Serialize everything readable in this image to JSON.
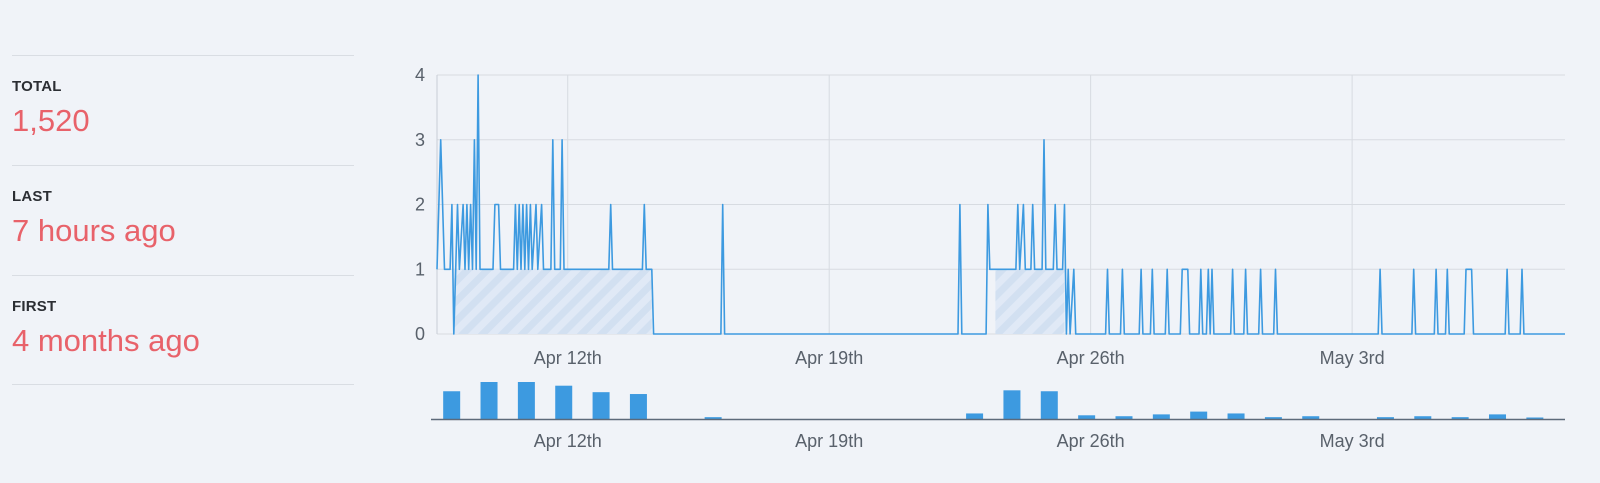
{
  "stats": [
    {
      "label": "TOTAL",
      "value": "1,520"
    },
    {
      "label": "LAST",
      "value": "7 hours ago"
    },
    {
      "label": "FIRST",
      "value": "4 months ago"
    }
  ],
  "colors": {
    "line": "#3d9ae0",
    "bar": "#3d9ae0",
    "value_text": "#e8626a",
    "grid": "#d7dbe1",
    "hatch": "#c3d8f0"
  },
  "chart_data": [
    {
      "type": "line",
      "title": "",
      "xlabel": "",
      "ylabel": "",
      "x_domain": [
        "Apr 9",
        "May 9"
      ],
      "ylim": [
        0,
        4
      ],
      "yticks": [
        "0",
        "1",
        "2",
        "3",
        "4"
      ],
      "xticks": [
        {
          "label": "Apr 12th",
          "day": 3.5
        },
        {
          "label": "Apr 19th",
          "day": 10.5
        },
        {
          "label": "Apr 26th",
          "day": 17.5
        },
        {
          "label": "May 3rd",
          "day": 24.5
        }
      ],
      "grid": true,
      "baseline_ranges": [
        [
          0.45,
          5.75
        ],
        [
          14.95,
          16.8
        ]
      ],
      "baseline_value": 1,
      "points": [
        [
          0.0,
          1
        ],
        [
          0.1,
          3
        ],
        [
          0.2,
          1
        ],
        [
          0.35,
          1
        ],
        [
          0.4,
          2
        ],
        [
          0.45,
          0
        ],
        [
          0.5,
          1
        ],
        [
          0.55,
          2
        ],
        [
          0.6,
          1
        ],
        [
          0.7,
          2
        ],
        [
          0.75,
          1
        ],
        [
          0.8,
          2
        ],
        [
          0.85,
          1
        ],
        [
          0.9,
          2
        ],
        [
          0.95,
          1
        ],
        [
          1.0,
          3
        ],
        [
          1.05,
          1
        ],
        [
          1.1,
          4
        ],
        [
          1.15,
          1
        ],
        [
          1.5,
          1
        ],
        [
          1.55,
          2
        ],
        [
          1.65,
          2
        ],
        [
          1.7,
          1
        ],
        [
          2.05,
          1
        ],
        [
          2.1,
          2
        ],
        [
          2.15,
          1
        ],
        [
          2.2,
          2
        ],
        [
          2.25,
          1
        ],
        [
          2.3,
          2
        ],
        [
          2.35,
          1
        ],
        [
          2.4,
          2
        ],
        [
          2.45,
          1
        ],
        [
          2.5,
          2
        ],
        [
          2.55,
          1
        ],
        [
          2.65,
          2
        ],
        [
          2.7,
          1
        ],
        [
          2.8,
          2
        ],
        [
          2.85,
          1
        ],
        [
          3.05,
          1
        ],
        [
          3.1,
          3
        ],
        [
          3.15,
          1
        ],
        [
          3.3,
          1
        ],
        [
          3.35,
          3
        ],
        [
          3.4,
          1
        ],
        [
          4.6,
          1
        ],
        [
          4.65,
          2
        ],
        [
          4.7,
          1
        ],
        [
          5.5,
          1
        ],
        [
          5.55,
          2
        ],
        [
          5.6,
          1
        ],
        [
          5.75,
          1
        ],
        [
          5.8,
          0
        ],
        [
          7.6,
          0
        ],
        [
          7.65,
          2
        ],
        [
          7.7,
          0
        ],
        [
          13.95,
          0
        ],
        [
          14.0,
          2
        ],
        [
          14.05,
          0
        ],
        [
          14.7,
          0
        ],
        [
          14.75,
          2
        ],
        [
          14.8,
          1
        ],
        [
          15.5,
          1
        ],
        [
          15.55,
          2
        ],
        [
          15.6,
          1
        ],
        [
          15.7,
          2
        ],
        [
          15.75,
          1
        ],
        [
          15.9,
          1
        ],
        [
          15.95,
          2
        ],
        [
          16.0,
          1
        ],
        [
          16.2,
          1
        ],
        [
          16.25,
          3
        ],
        [
          16.3,
          1
        ],
        [
          16.5,
          1
        ],
        [
          16.55,
          2
        ],
        [
          16.6,
          1
        ],
        [
          16.75,
          1
        ],
        [
          16.8,
          2
        ],
        [
          16.85,
          0
        ],
        [
          16.9,
          1
        ],
        [
          16.95,
          0
        ],
        [
          17.05,
          1
        ],
        [
          17.1,
          0
        ],
        [
          17.9,
          0
        ],
        [
          17.95,
          1
        ],
        [
          18.0,
          0
        ],
        [
          18.3,
          0
        ],
        [
          18.35,
          1
        ],
        [
          18.4,
          0
        ],
        [
          18.8,
          0
        ],
        [
          18.85,
          1
        ],
        [
          18.9,
          0
        ],
        [
          19.1,
          0
        ],
        [
          19.15,
          1
        ],
        [
          19.2,
          0
        ],
        [
          19.5,
          0
        ],
        [
          19.55,
          1
        ],
        [
          19.6,
          0
        ],
        [
          19.9,
          0
        ],
        [
          19.95,
          1
        ],
        [
          20.1,
          1
        ],
        [
          20.15,
          0
        ],
        [
          20.4,
          0
        ],
        [
          20.45,
          1
        ],
        [
          20.5,
          0
        ],
        [
          20.6,
          0
        ],
        [
          20.65,
          1
        ],
        [
          20.7,
          0
        ],
        [
          20.75,
          1
        ],
        [
          20.8,
          0
        ],
        [
          21.25,
          0
        ],
        [
          21.3,
          1
        ],
        [
          21.35,
          0
        ],
        [
          21.6,
          0
        ],
        [
          21.65,
          1
        ],
        [
          21.7,
          0
        ],
        [
          22.0,
          0
        ],
        [
          22.05,
          1
        ],
        [
          22.1,
          0
        ],
        [
          22.4,
          0
        ],
        [
          22.45,
          1
        ],
        [
          22.5,
          0
        ],
        [
          25.2,
          0
        ],
        [
          25.25,
          1
        ],
        [
          25.3,
          0
        ],
        [
          26.1,
          0
        ],
        [
          26.15,
          1
        ],
        [
          26.2,
          0
        ],
        [
          26.7,
          0
        ],
        [
          26.75,
          1
        ],
        [
          26.8,
          0
        ],
        [
          27.0,
          0
        ],
        [
          27.05,
          1
        ],
        [
          27.1,
          0
        ],
        [
          27.5,
          0
        ],
        [
          27.55,
          1
        ],
        [
          27.7,
          1
        ],
        [
          27.75,
          0
        ],
        [
          28.6,
          0
        ],
        [
          28.65,
          1
        ],
        [
          28.7,
          0
        ],
        [
          29.0,
          0
        ],
        [
          29.05,
          1
        ],
        [
          29.1,
          0
        ],
        [
          30.2,
          0
        ]
      ]
    },
    {
      "type": "bar",
      "title": "",
      "xlabel": "",
      "ylabel": "",
      "xticks": [
        {
          "label": "Apr 12th",
          "day": 3.5
        },
        {
          "label": "Apr 19th",
          "day": 10.5
        },
        {
          "label": "Apr 26th",
          "day": 17.5
        },
        {
          "label": "May 3rd",
          "day": 24.5
        }
      ],
      "ylim": [
        0,
        40
      ],
      "bars": [
        {
          "day": 0,
          "value": 30
        },
        {
          "day": 1,
          "value": 40
        },
        {
          "day": 2,
          "value": 40
        },
        {
          "day": 3,
          "value": 36
        },
        {
          "day": 4,
          "value": 29
        },
        {
          "day": 5,
          "value": 27
        },
        {
          "day": 7,
          "value": 2
        },
        {
          "day": 14,
          "value": 6
        },
        {
          "day": 15,
          "value": 31
        },
        {
          "day": 16,
          "value": 30
        },
        {
          "day": 17,
          "value": 4
        },
        {
          "day": 18,
          "value": 3
        },
        {
          "day": 19,
          "value": 5
        },
        {
          "day": 20,
          "value": 8
        },
        {
          "day": 21,
          "value": 6
        },
        {
          "day": 22,
          "value": 2
        },
        {
          "day": 23,
          "value": 3
        },
        {
          "day": 25,
          "value": 2
        },
        {
          "day": 26,
          "value": 3
        },
        {
          "day": 27,
          "value": 2
        },
        {
          "day": 28,
          "value": 5
        },
        {
          "day": 29,
          "value": 1
        }
      ]
    }
  ]
}
